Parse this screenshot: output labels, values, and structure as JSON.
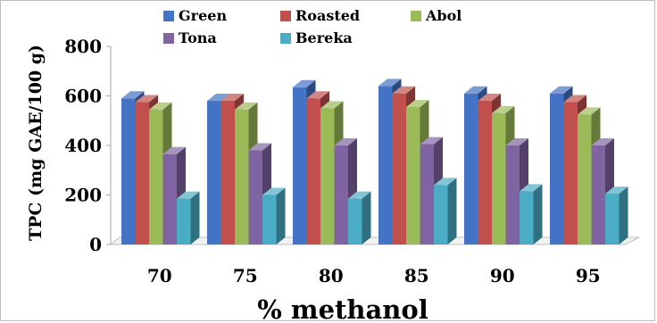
{
  "chart_data": {
    "type": "bar",
    "style": "3d-clustered-column",
    "categories": [
      "70",
      "75",
      "80",
      "85",
      "90",
      "95"
    ],
    "series": [
      {
        "name": "Green",
        "color": "#4472C4",
        "values": [
          590,
          580,
          635,
          640,
          610,
          610
        ]
      },
      {
        "name": "Roasted",
        "color": "#C0504D",
        "values": [
          575,
          580,
          590,
          610,
          580,
          575
        ]
      },
      {
        "name": "Abol",
        "color": "#9BBB59",
        "values": [
          545,
          545,
          550,
          555,
          530,
          525
        ]
      },
      {
        "name": "Tona",
        "color": "#8064A2",
        "values": [
          365,
          380,
          400,
          405,
          400,
          400
        ]
      },
      {
        "name": "Bereka",
        "color": "#4BACC6",
        "values": [
          185,
          200,
          185,
          240,
          215,
          205
        ]
      }
    ],
    "xlabel": "% methanol",
    "ylabel": "TPC (mg GAE/100 g)",
    "ylim": [
      0,
      800
    ],
    "yticks": [
      "0",
      "200",
      "400",
      "600",
      "800"
    ],
    "grid": false,
    "legend_position": "top"
  }
}
